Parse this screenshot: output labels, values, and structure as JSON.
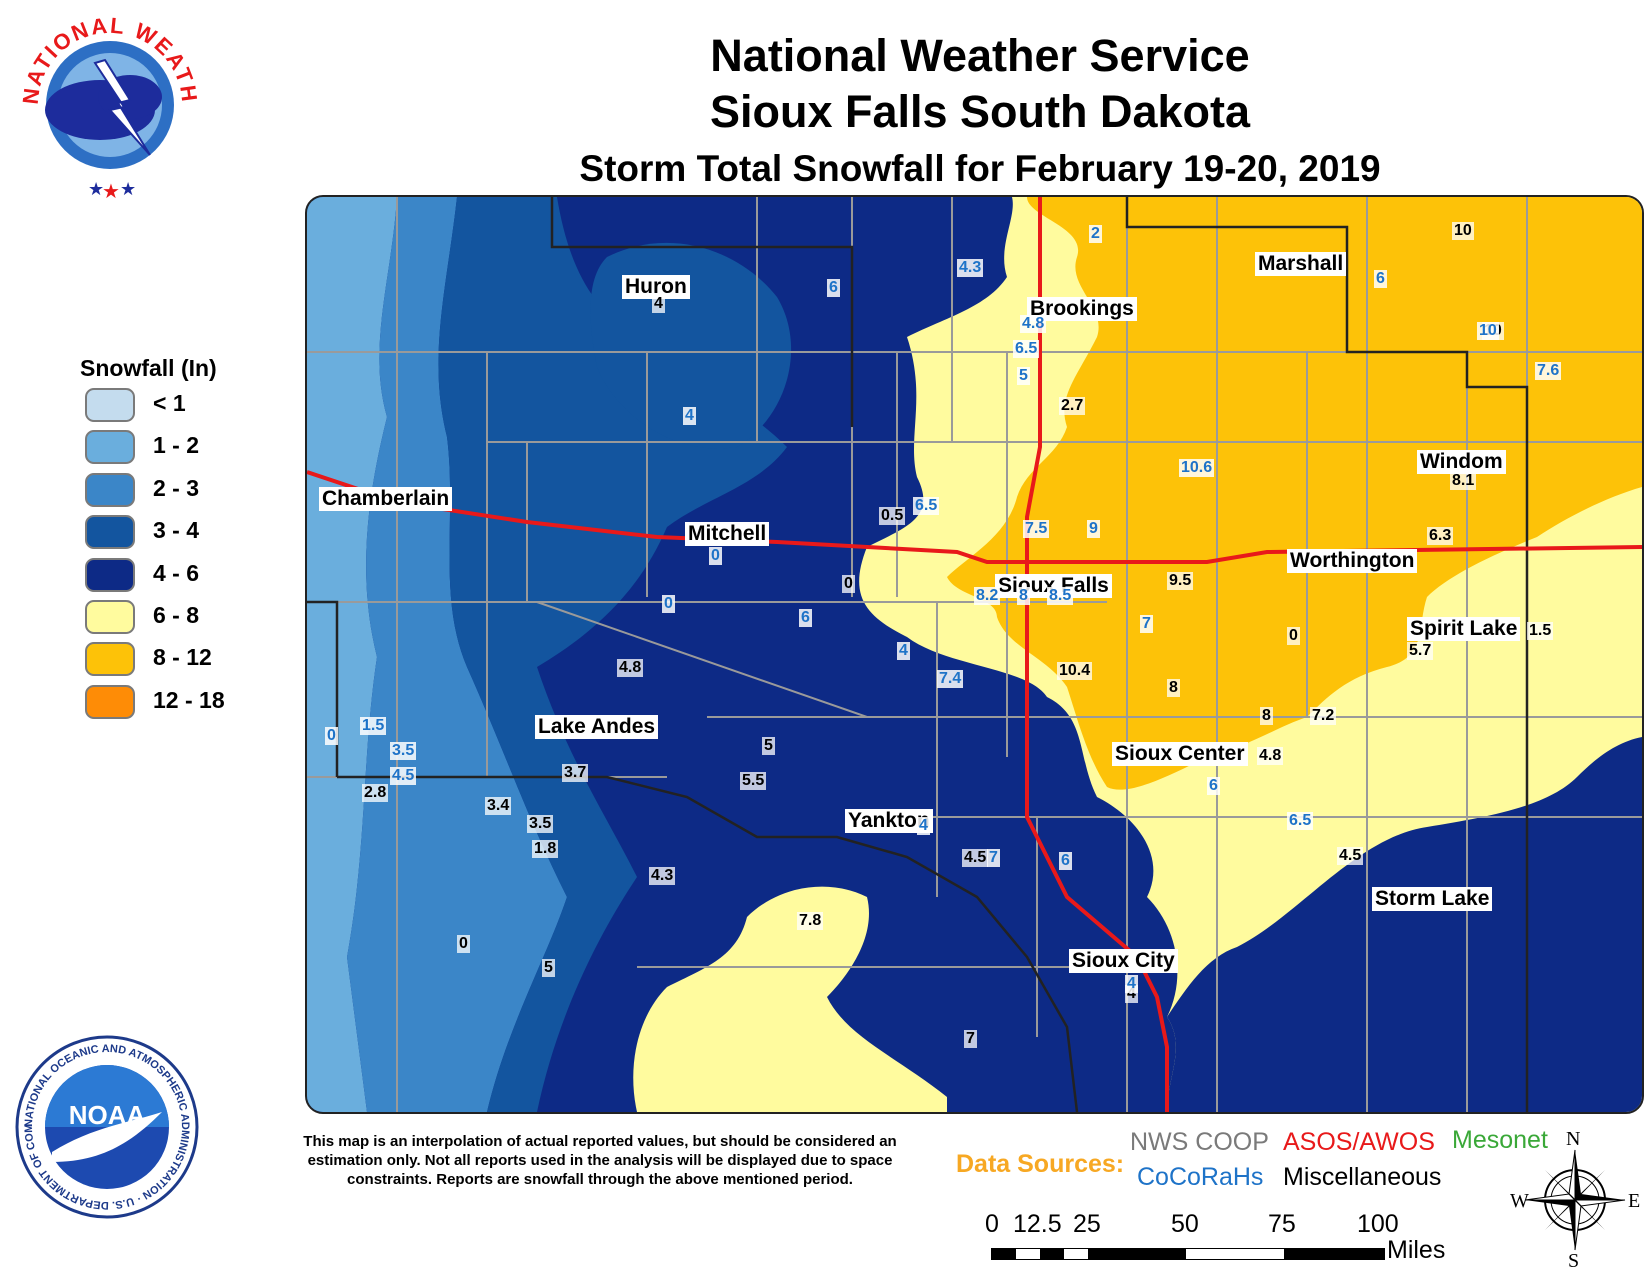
{
  "title": {
    "line1": "National Weather Service",
    "line2": "Sioux Falls South Dakota",
    "line3": "Storm Total Snowfall for February 19-20, 2019"
  },
  "nws_logo": {
    "text": "NATIONAL WEATHER SERVICE",
    "icon": "nws-logo-icon"
  },
  "noaa_logo": {
    "text": "NOAA",
    "ring_text": "NATIONAL OCEANIC AND ATMOSPHERIC ADMINISTRATION · U.S. DEPARTMENT OF COMMERCE",
    "icon": "noaa-logo-icon"
  },
  "legend": {
    "title": "Snowfall (In)",
    "items": [
      {
        "label": "< 1",
        "color": "#c4dcee"
      },
      {
        "label": "1 - 2",
        "color": "#6aaedd"
      },
      {
        "label": "2 - 3",
        "color": "#3b86c8"
      },
      {
        "label": "3 - 4",
        "color": "#13559f"
      },
      {
        "label": "4 - 6",
        "color": "#0d2a86"
      },
      {
        "label": "6 - 8",
        "color": "#fffb9e"
      },
      {
        "label": "8 - 12",
        "color": "#fdc208"
      },
      {
        "label": "12 - 18",
        "color": "#fe8c06"
      }
    ]
  },
  "cities": [
    "Huron",
    "Brookings",
    "Marshall",
    "Chamberlain",
    "Mitchell",
    "Sioux Falls",
    "Worthington",
    "Windom",
    "Spirit Lake",
    "Lake Andes",
    "Sioux Center",
    "Yankton",
    "Storm Lake",
    "Sioux City"
  ],
  "reports_black": [
    "4",
    "10",
    "10",
    "4.8",
    "5",
    "0.5",
    "0",
    "9.5",
    "8.1",
    "6.3",
    "0",
    "1.5",
    "5.7",
    "10.4",
    "8",
    "8",
    "7.2",
    "4.8",
    "3.7",
    "2.8",
    "3.5",
    "1.8",
    "4.3",
    "7.8",
    "4.5",
    "5.5",
    "0",
    "5",
    "7",
    "4",
    "4.5",
    "3.4",
    "2.7"
  ],
  "reports_blue": [
    "6",
    "4.3",
    "2",
    "6",
    "4.8",
    "6.5",
    "5",
    "4",
    "6.5",
    "7.5",
    "9",
    "10.6",
    "10",
    "7.6",
    "0",
    "0",
    "6",
    "8.2",
    "8",
    "8.5",
    "7",
    "4",
    "7.4",
    "1.5",
    "0",
    "3.5",
    "4.5",
    "6",
    "6.5",
    "4",
    "7",
    "6",
    "4"
  ],
  "note": "This map is an interpolation of actual reported values, but should be considered an estimation only. Not all reports used in the analysis will be displayed due to space constraints. Reports are snowfall through the above mentioned period.",
  "sources": {
    "label": "Data Sources:",
    "label_color": "#f7a823",
    "items": [
      {
        "name": "NWS COOP",
        "color": "#7a7a7a"
      },
      {
        "name": "ASOS/AWOS",
        "color": "#e8191a"
      },
      {
        "name": "Mesonet",
        "color": "#3aa838"
      },
      {
        "name": "CoCoRaHs",
        "color": "#1e73c8"
      },
      {
        "name": "Miscellaneous",
        "color": "#000000"
      }
    ]
  },
  "scale": {
    "ticks": [
      "0",
      "12.5",
      "25",
      "50",
      "75",
      "100"
    ],
    "unit": "Miles"
  },
  "compass": {
    "n": "N",
    "s": "S",
    "e": "E",
    "w": "W",
    "icon": "compass-rose-icon"
  }
}
